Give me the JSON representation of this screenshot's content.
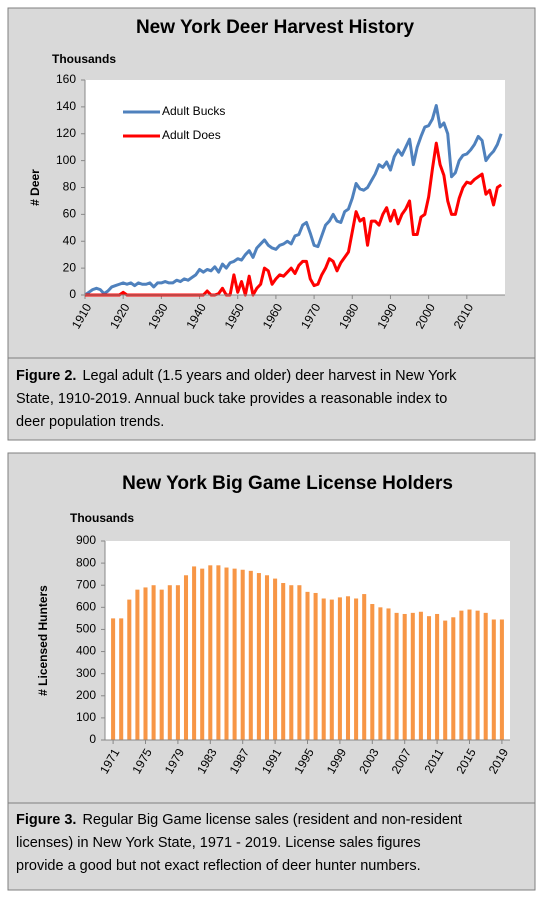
{
  "chart_data": [
    {
      "type": "line",
      "title": "New York Deer Harvest History",
      "yunit": "Thousands",
      "ylabel": "# Deer",
      "x": [
        1910,
        1911,
        1912,
        1913,
        1914,
        1915,
        1916,
        1917,
        1918,
        1919,
        1920,
        1921,
        1922,
        1923,
        1924,
        1925,
        1926,
        1927,
        1928,
        1929,
        1930,
        1931,
        1932,
        1933,
        1934,
        1935,
        1936,
        1937,
        1938,
        1939,
        1940,
        1941,
        1942,
        1943,
        1944,
        1945,
        1946,
        1947,
        1948,
        1949,
        1950,
        1951,
        1952,
        1953,
        1954,
        1955,
        1956,
        1957,
        1958,
        1959,
        1960,
        1961,
        1962,
        1963,
        1964,
        1965,
        1966,
        1967,
        1968,
        1969,
        1970,
        1971,
        1972,
        1973,
        1974,
        1975,
        1976,
        1977,
        1978,
        1979,
        1980,
        1981,
        1982,
        1983,
        1984,
        1985,
        1986,
        1987,
        1988,
        1989,
        1990,
        1991,
        1992,
        1993,
        1994,
        1995,
        1996,
        1997,
        1998,
        1999,
        2000,
        2001,
        2002,
        2003,
        2004,
        2005,
        2006,
        2007,
        2008,
        2009,
        2010,
        2011,
        2012,
        2013,
        2014,
        2015,
        2016,
        2017,
        2018,
        2019
      ],
      "series": [
        {
          "name": "Adult Bucks",
          "color": "#4f81bd",
          "values": [
            0,
            2,
            4,
            5,
            4,
            1,
            3,
            6,
            7,
            8,
            9,
            8,
            9,
            7,
            9,
            8,
            8,
            9,
            6,
            9,
            9,
            10,
            9,
            9,
            11,
            10,
            12,
            11,
            13,
            15,
            19,
            17,
            19,
            18,
            21,
            17,
            23,
            20,
            24,
            25,
            27,
            26,
            30,
            33,
            28,
            35,
            38,
            41,
            37,
            35,
            34,
            37,
            38,
            40,
            38,
            44,
            45,
            52,
            54,
            46,
            37,
            36,
            44,
            52,
            55,
            60,
            55,
            54,
            62,
            64,
            72,
            83,
            79,
            78,
            80,
            85,
            90,
            97,
            95,
            99,
            93,
            103,
            108,
            104,
            110,
            116,
            97,
            110,
            118,
            125,
            126,
            131,
            141,
            125,
            128,
            120,
            88,
            91,
            100,
            104,
            105,
            108,
            112,
            118,
            115,
            100,
            104,
            107,
            112,
            120
          ]
        },
        {
          "name": "Adult Does",
          "color": "#ff0000",
          "values": [
            0,
            0,
            0,
            0,
            0,
            0,
            0,
            0,
            0,
            0,
            2,
            0,
            0,
            0,
            0,
            0,
            0,
            0,
            0,
            0,
            0,
            0,
            0,
            0,
            0,
            0,
            0,
            0,
            0,
            0,
            0,
            0,
            3,
            0,
            0,
            1,
            5,
            0,
            0,
            15,
            2,
            10,
            0,
            14,
            0,
            5,
            8,
            20,
            18,
            8,
            12,
            15,
            14,
            17,
            20,
            16,
            22,
            25,
            25,
            12,
            7,
            8,
            15,
            20,
            27,
            25,
            18,
            24,
            28,
            32,
            47,
            62,
            55,
            57,
            37,
            55,
            55,
            52,
            60,
            65,
            55,
            63,
            53,
            60,
            64,
            70,
            45,
            45,
            58,
            60,
            73,
            94,
            113,
            97,
            89,
            70,
            60,
            60,
            72,
            80,
            84,
            83,
            86,
            88,
            90,
            75,
            78,
            67,
            80,
            82
          ]
        }
      ],
      "xlim": [
        1910,
        2020
      ],
      "xticks": [
        1910,
        1920,
        1930,
        1940,
        1950,
        1960,
        1970,
        1980,
        1990,
        2000,
        2010
      ],
      "ylim": [
        0,
        160
      ],
      "yticks": [
        0,
        20,
        40,
        60,
        80,
        100,
        120,
        140,
        160
      ],
      "grid": false,
      "legend": "upper left"
    },
    {
      "type": "bar",
      "title": "New York Big Game License Holders",
      "yunit": "Thousands",
      "ylabel": "# Licensed Hunters",
      "color": "#f79646",
      "x": [
        1971,
        1972,
        1973,
        1974,
        1975,
        1976,
        1977,
        1978,
        1979,
        1980,
        1981,
        1982,
        1983,
        1984,
        1985,
        1986,
        1987,
        1988,
        1989,
        1990,
        1991,
        1992,
        1993,
        1994,
        1995,
        1996,
        1997,
        1998,
        1999,
        2000,
        2001,
        2002,
        2003,
        2004,
        2005,
        2006,
        2007,
        2008,
        2009,
        2010,
        2011,
        2012,
        2013,
        2014,
        2015,
        2016,
        2017,
        2018,
        2019
      ],
      "values": [
        550,
        550,
        635,
        680,
        690,
        700,
        680,
        700,
        700,
        745,
        785,
        775,
        790,
        790,
        780,
        775,
        770,
        765,
        755,
        745,
        730,
        710,
        700,
        700,
        670,
        665,
        640,
        635,
        645,
        650,
        640,
        660,
        615,
        600,
        595,
        575,
        570,
        575,
        580,
        560,
        570,
        540,
        555,
        585,
        590,
        585,
        575,
        545,
        545
      ],
      "xlim": [
        1970,
        2020
      ],
      "xticks": [
        1971,
        1975,
        1979,
        1983,
        1987,
        1991,
        1995,
        1999,
        2003,
        2007,
        2011,
        2015,
        2019
      ],
      "ylim": [
        0,
        900
      ],
      "yticks": [
        0,
        100,
        200,
        300,
        400,
        500,
        600,
        700,
        800,
        900
      ],
      "grid": false
    }
  ],
  "captions": [
    {
      "label": "Figure 2.",
      "lines": [
        "Legal adult (1.5 years and older) deer harvest in New York",
        "State, 1910-2019.  Annual buck take provides a reasonable index to",
        "deer population trends."
      ]
    },
    {
      "label": "Figure 3.",
      "lines": [
        "Regular Big Game license sales (resident and non-resident",
        "licenses) in New York State, 1971 - 2019.  License sales figures",
        "provide a good but not exact reflection of deer hunter numbers."
      ]
    }
  ]
}
